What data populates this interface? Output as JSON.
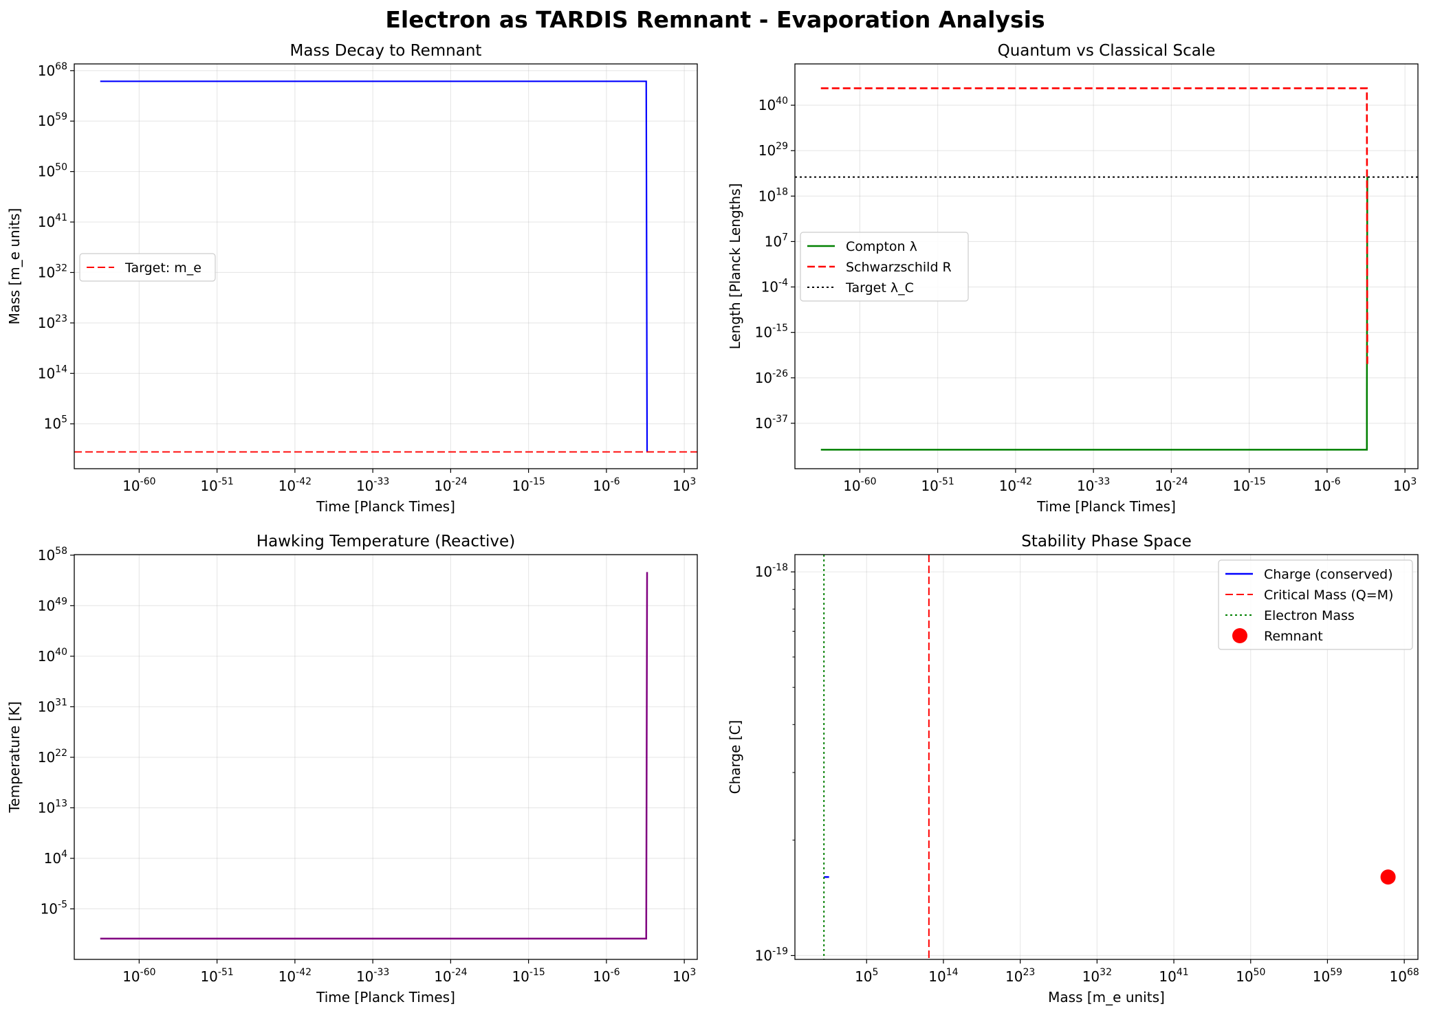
{
  "suptitle": "Electron as TARDIS Remnant - Evaporation Analysis",
  "chart_data": [
    {
      "type": "line",
      "title": "Mass Decay to Remnant",
      "xlabel": "Time [Planck Times]",
      "ylabel": "Mass [m_e units]",
      "xscale": "log",
      "yscale": "log",
      "xlim_log10": [
        -67.5,
        4.5
      ],
      "ylim_log10": [
        -3.0,
        69.2
      ],
      "xticks_log10": [
        -60,
        -51,
        -42,
        -33,
        -24,
        -15,
        -6,
        3
      ],
      "yticks_log10": [
        5,
        14,
        23,
        32,
        41,
        50,
        59,
        68
      ],
      "grid": true,
      "legend_loc": "center left",
      "series": [
        {
          "name": "",
          "color": "#0000ff",
          "style": "solid",
          "width": 2.2,
          "points": [
            [
              -64.5,
              66.1
            ],
            [
              -1.4,
              66.1
            ],
            [
              -1.4,
              66.0
            ],
            [
              -1.3,
              0
            ]
          ]
        },
        {
          "name": "Target: m_e",
          "color": "#ff0000",
          "style": "dashed",
          "width": 1.9,
          "hline": 0
        }
      ]
    },
    {
      "type": "line",
      "title": "Quantum vs Classical Scale",
      "xlabel": "Time [Planck Times]",
      "ylabel": "Length [Planck Lengths]",
      "xscale": "log",
      "yscale": "log",
      "xlim_log10": [
        -67.5,
        4.5
      ],
      "ylim_log10": [
        -48.0,
        50.0
      ],
      "xticks_log10": [
        -60,
        -51,
        -42,
        -33,
        -24,
        -15,
        -6,
        3
      ],
      "yticks_log10": [
        -37,
        -26,
        -15,
        -4,
        7,
        18,
        29,
        40
      ],
      "grid": true,
      "legend_loc": "center left",
      "series": [
        {
          "name": "Compton λ",
          "color": "#008000",
          "style": "solid",
          "width": 2.5,
          "points": [
            [
              -64.5,
              -43.4
            ],
            [
              -1.4,
              -43.4
            ],
            [
              -1.4,
              -43.0
            ],
            [
              -1.4,
              -30.0
            ],
            [
              -1.35,
              22.6
            ]
          ]
        },
        {
          "name": "Schwarzschild R",
          "color": "#ff0000",
          "style": "dashed",
          "width": 2.6,
          "points": [
            [
              -64.5,
              44.1
            ],
            [
              -1.4,
              44.1
            ],
            [
              -1.4,
              40.0
            ],
            [
              -1.35,
              -23.1
            ]
          ]
        },
        {
          "name": "Target λ_C",
          "color": "#000000",
          "style": "dotted",
          "width": 2.0,
          "hline": 22.6
        }
      ]
    },
    {
      "type": "line",
      "title": "Hawking Temperature (Reactive)",
      "xlabel": "Time [Planck Times]",
      "ylabel": "Temperature [K]",
      "xscale": "log",
      "yscale": "log",
      "xlim_log10": [
        -67.5,
        4.5
      ],
      "ylim_log10": [
        -14.0,
        58.1
      ],
      "xticks_log10": [
        -60,
        -51,
        -42,
        -33,
        -24,
        -15,
        -6,
        3
      ],
      "yticks_log10": [
        -5,
        4,
        13,
        22,
        31,
        40,
        49,
        58
      ],
      "grid": true,
      "series": [
        {
          "name": "",
          "color": "#800080",
          "style": "solid",
          "width": 2.5,
          "points": [
            [
              -64.5,
              -10.3
            ],
            [
              -1.4,
              -10.3
            ],
            [
              -1.4,
              -10.0
            ],
            [
              -1.3,
              55.0
            ]
          ]
        }
      ]
    },
    {
      "type": "line",
      "title": "Stability Phase Space",
      "xlabel": "Mass [m_e units]",
      "ylabel": "Charge [C]",
      "xscale": "log",
      "yscale": "log",
      "xlim_log10": [
        -3.4,
        69.6
      ],
      "ylim_log10": [
        -19.01,
        -17.955
      ],
      "xticks_log10": [
        5,
        14,
        23,
        32,
        41,
        50,
        59,
        68
      ],
      "yticks_log10": [
        -18,
        -19
      ],
      "grid": true,
      "legend_loc": "upper right",
      "series": [
        {
          "name": "Charge (conserved)",
          "color": "#0000ff",
          "style": "solid",
          "width": 2.5,
          "points": [
            [
              0,
              -18.7953
            ],
            [
              0.6,
              -18.7953
            ]
          ]
        },
        {
          "name": "Critical Mass (Q=M)",
          "color": "#ff0000",
          "style": "dashed",
          "width": 2.0,
          "vline": 12.3
        },
        {
          "name": "Electron Mass",
          "color": "#008000",
          "style": "dotted",
          "width": 2.0,
          "vline": 0
        },
        {
          "name": "Remnant",
          "color": "#ff0000",
          "style": "marker",
          "size": 22,
          "point": [
            66.1,
            -18.7953
          ]
        }
      ]
    }
  ]
}
